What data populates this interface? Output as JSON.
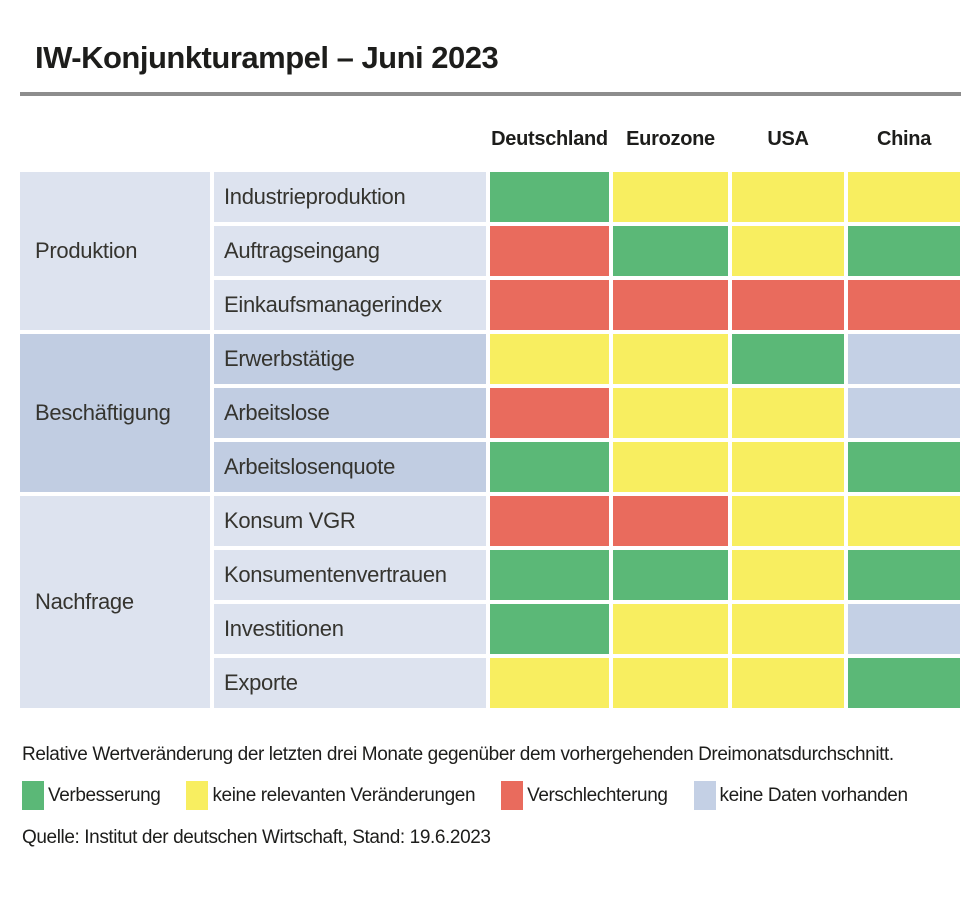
{
  "title": "IW-Konjunkturampel – Juni 2023",
  "columns": [
    "Deutschland",
    "Eurozone",
    "USA",
    "China"
  ],
  "status_colors": {
    "green": "#5bb877",
    "yellow": "#f8ee60",
    "red": "#e96b5d",
    "nodata": "#c4d0e5"
  },
  "group_shades": {
    "light": "#dde3ef",
    "dark": "#c1cde2"
  },
  "groups": [
    {
      "label": "Produktion",
      "shade": "light",
      "rows": [
        {
          "label": "Industrieproduktion",
          "values": [
            "green",
            "yellow",
            "yellow",
            "yellow"
          ]
        },
        {
          "label": "Auftragseingang",
          "values": [
            "red",
            "green",
            "yellow",
            "green"
          ]
        },
        {
          "label": "Einkaufsmanagerindex",
          "values": [
            "red",
            "red",
            "red",
            "red"
          ]
        }
      ]
    },
    {
      "label": "Beschäftigung",
      "shade": "dark",
      "rows": [
        {
          "label": "Erwerbstätige",
          "values": [
            "yellow",
            "yellow",
            "green",
            "nodata"
          ]
        },
        {
          "label": "Arbeitslose",
          "values": [
            "red",
            "yellow",
            "yellow",
            "nodata"
          ]
        },
        {
          "label": "Arbeitslosenquote",
          "values": [
            "green",
            "yellow",
            "yellow",
            "green"
          ]
        }
      ]
    },
    {
      "label": "Nachfrage",
      "shade": "light",
      "rows": [
        {
          "label": "Konsum VGR",
          "values": [
            "red",
            "red",
            "yellow",
            "yellow"
          ]
        },
        {
          "label": "Konsumentenvertrauen",
          "values": [
            "green",
            "green",
            "yellow",
            "green"
          ]
        },
        {
          "label": "Investitionen",
          "values": [
            "green",
            "yellow",
            "yellow",
            "nodata"
          ]
        },
        {
          "label": "Exporte",
          "values": [
            "yellow",
            "yellow",
            "yellow",
            "green"
          ]
        }
      ]
    }
  ],
  "footnote": "Relative Wertveränderung der letzten drei Monate gegenüber dem vorhergehenden Dreimonatsdurchschnitt.",
  "legend": [
    {
      "key": "green",
      "label": "Verbesserung"
    },
    {
      "key": "yellow",
      "label": "keine relevanten Veränderungen"
    },
    {
      "key": "red",
      "label": "Verschlechterung"
    },
    {
      "key": "nodata",
      "label": "keine Daten vorhanden"
    }
  ],
  "source": "Quelle: Institut der deutschen Wirtschaft, Stand: 19.6.2023",
  "chart_data": {
    "type": "heatmap",
    "title": "IW-Konjunkturampel – Juni 2023",
    "columns": [
      "Deutschland",
      "Eurozone",
      "USA",
      "China"
    ],
    "status_legend": {
      "green": "Verbesserung",
      "yellow": "keine relevanten Veränderungen",
      "red": "Verschlechterung",
      "nodata": "keine Daten vorhanden"
    },
    "row_groups": [
      {
        "group": "Produktion",
        "rows": [
          "Industrieproduktion",
          "Auftragseingang",
          "Einkaufsmanagerindex"
        ]
      },
      {
        "group": "Beschäftigung",
        "rows": [
          "Erwerbstätige",
          "Arbeitslose",
          "Arbeitslosenquote"
        ]
      },
      {
        "group": "Nachfrage",
        "rows": [
          "Konsum VGR",
          "Konsumentenvertrauen",
          "Investitionen",
          "Exporte"
        ]
      }
    ],
    "matrix": [
      {
        "row": "Industrieproduktion",
        "values": [
          "green",
          "yellow",
          "yellow",
          "yellow"
        ]
      },
      {
        "row": "Auftragseingang",
        "values": [
          "red",
          "green",
          "yellow",
          "green"
        ]
      },
      {
        "row": "Einkaufsmanagerindex",
        "values": [
          "red",
          "red",
          "red",
          "red"
        ]
      },
      {
        "row": "Erwerbstätige",
        "values": [
          "yellow",
          "yellow",
          "green",
          "nodata"
        ]
      },
      {
        "row": "Arbeitslose",
        "values": [
          "red",
          "yellow",
          "yellow",
          "nodata"
        ]
      },
      {
        "row": "Arbeitslosenquote",
        "values": [
          "green",
          "yellow",
          "yellow",
          "green"
        ]
      },
      {
        "row": "Konsum VGR",
        "values": [
          "red",
          "red",
          "yellow",
          "yellow"
        ]
      },
      {
        "row": "Konsumentenvertrauen",
        "values": [
          "green",
          "green",
          "yellow",
          "green"
        ]
      },
      {
        "row": "Investitionen",
        "values": [
          "green",
          "yellow",
          "yellow",
          "nodata"
        ]
      },
      {
        "row": "Exporte",
        "values": [
          "yellow",
          "yellow",
          "yellow",
          "green"
        ]
      }
    ]
  }
}
